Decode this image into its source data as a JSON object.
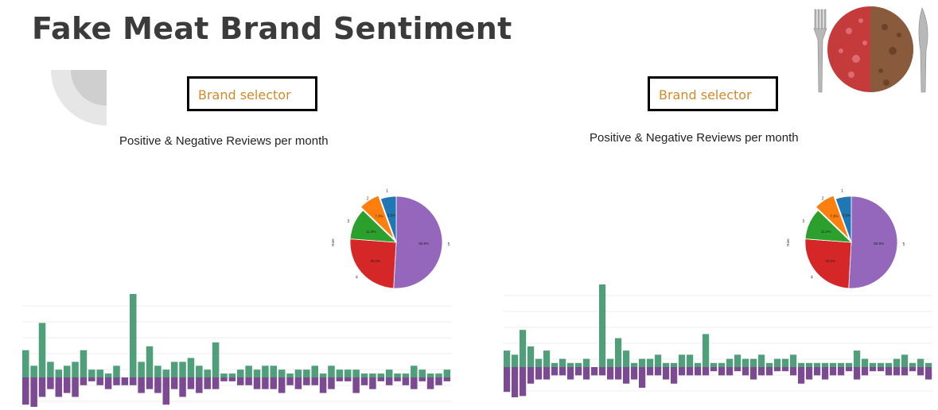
{
  "page": {
    "title": "Fake Meat Brand Sentiment"
  },
  "panels": [
    {
      "selector_label": "Brand selector",
      "subtitle": "Positive & Negative Reviews per month"
    },
    {
      "selector_label": "Brand selector",
      "subtitle": "Positive & Negative Reviews per month"
    }
  ],
  "icons": {
    "logo": "fork-knife-burger-patty-icon",
    "decoration": "quarter-circle-icon"
  },
  "colors": {
    "positive": "#4e9f7a",
    "negative": "#7b4a92",
    "selector_text": "#d08a2b",
    "pie_purple": "#9467bd",
    "pie_red": "#d62728",
    "pie_green": "#2ca02c",
    "pie_orange": "#ff7f0e",
    "pie_blue": "#1f77b4"
  },
  "chart_data": [
    {
      "type": "bar",
      "pos": [
        7,
        3,
        14,
        4,
        2,
        3,
        4,
        7,
        2,
        2,
        1,
        3,
        0,
        22,
        4,
        8,
        3,
        2,
        4,
        4,
        5,
        3,
        2,
        9,
        1,
        1,
        2,
        3,
        2,
        3,
        3,
        2,
        1,
        2,
        2,
        3,
        1,
        3,
        2,
        2,
        2,
        1,
        1,
        1,
        2,
        1,
        1,
        3,
        2,
        1,
        1,
        2
      ],
      "neg": [
        -7,
        -8,
        -5,
        -3,
        -5,
        -4,
        -5,
        -2,
        -1,
        -2,
        -3,
        -2,
        -2,
        -2,
        -4,
        -3,
        -4,
        -7,
        -3,
        -5,
        -3,
        -4,
        -3,
        -3,
        -1,
        -1,
        -2,
        -2,
        -3,
        -3,
        -3,
        -4,
        -2,
        -3,
        -2,
        -2,
        -4,
        -3,
        -1,
        -1,
        -4,
        -2,
        -3,
        -1,
        -2,
        -1,
        -2,
        -3,
        -1,
        -3,
        -2,
        -1
      ]
    },
    {
      "type": "pie",
      "slices": [
        {
          "label": "5",
          "value": 50.9,
          "pct": "50.9%",
          "color": "#9467bd"
        },
        {
          "label": "4",
          "value": 25.3,
          "pct": "25.3%",
          "color": "#d62728"
        },
        {
          "label": "3",
          "value": 11.0,
          "pct": "11.0%",
          "color": "#2ca02c"
        },
        {
          "label": "2",
          "value": 7.3,
          "pct": "7.3%",
          "color": "#ff7f0e"
        },
        {
          "label": "1",
          "value": 5.5,
          "pct": "5.5%",
          "color": "#1f77b4"
        }
      ],
      "ylabel": "Rate"
    },
    {
      "type": "bar",
      "pos": [
        4,
        3,
        9,
        5,
        2,
        4,
        1,
        2,
        1,
        1,
        2,
        0,
        20,
        2,
        7,
        4,
        1,
        2,
        2,
        3,
        1,
        1,
        3,
        3,
        1,
        8,
        1,
        1,
        2,
        3,
        2,
        2,
        3,
        1,
        2,
        2,
        3,
        1,
        1,
        1,
        1,
        1,
        1,
        1,
        4,
        2,
        1,
        1,
        1,
        2,
        3,
        1,
        2,
        1
      ],
      "neg": [
        -6,
        -8,
        -7,
        -4,
        -3,
        -3,
        -2,
        -2,
        -3,
        -2,
        -3,
        -2,
        -2,
        -3,
        -3,
        -4,
        -3,
        -5,
        -2,
        -2,
        -3,
        -4,
        -2,
        -2,
        -2,
        -2,
        -1,
        -2,
        -2,
        -1,
        -2,
        -3,
        -2,
        -2,
        -1,
        -1,
        -2,
        -4,
        -3,
        -2,
        -3,
        -2,
        -2,
        -1,
        -3,
        -2,
        -1,
        -1,
        -2,
        -2,
        -2,
        -1,
        -2,
        -3
      ]
    },
    {
      "type": "pie",
      "slices": [
        {
          "label": "5",
          "value": 50.9,
          "pct": "50.9%",
          "color": "#9467bd"
        },
        {
          "label": "4",
          "value": 25.3,
          "pct": "25.3%",
          "color": "#d62728"
        },
        {
          "label": "3",
          "value": 11.0,
          "pct": "11.0%",
          "color": "#2ca02c"
        },
        {
          "label": "2",
          "value": 7.3,
          "pct": "7.3%",
          "color": "#ff7f0e"
        },
        {
          "label": "1",
          "value": 5.5,
          "pct": "5.5%",
          "color": "#1f77b4"
        }
      ],
      "ylabel": "Rate"
    }
  ]
}
